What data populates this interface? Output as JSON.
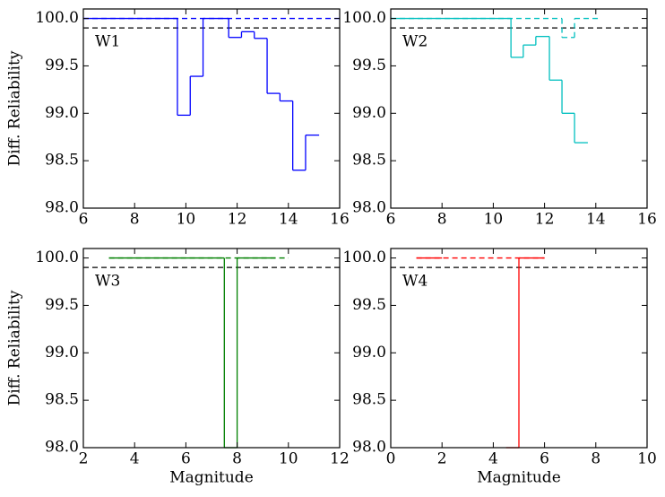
{
  "chart_data": [
    {
      "type": "step",
      "label": "W1",
      "ylabel": "Diff. Reliability",
      "xlim": [
        6,
        16
      ],
      "xticks": [
        6,
        8,
        10,
        12,
        14,
        16
      ],
      "ylim": [
        98,
        100.1
      ],
      "yticks": [
        {
          "value": 98,
          "label": "98.0"
        },
        {
          "value": 98.5,
          "label": "98.5"
        },
        {
          "value": 99,
          "label": "99.0"
        },
        {
          "value": 99.5,
          "label": "99.5"
        },
        {
          "value": 100,
          "label": "100.0"
        }
      ],
      "hline": 99.9,
      "hline_color": "#000000",
      "series": [
        {
          "color": "#0000ff",
          "style": "solid",
          "bins": [
            6,
            9.67,
            10.17,
            10.67,
            11.67,
            12.17,
            12.67,
            13.17,
            13.67,
            14.17,
            14.67,
            15.2
          ],
          "values": [
            100,
            98.98,
            99.39,
            100,
            99.8,
            99.86,
            99.79,
            99.21,
            99.13,
            98.4,
            98.77
          ]
        },
        {
          "color": "#0000ff",
          "style": "dashed",
          "bins": [
            6,
            16
          ],
          "values": [
            100
          ]
        }
      ]
    },
    {
      "type": "step",
      "label": "W2",
      "xlim": [
        6,
        16
      ],
      "xticks": [
        6,
        8,
        10,
        12,
        14,
        16
      ],
      "ylim": [
        98,
        100.1
      ],
      "yticks": [
        {
          "value": 98,
          "label": "98.0"
        },
        {
          "value": 98.5,
          "label": "98.5"
        },
        {
          "value": 99,
          "label": "99.0"
        },
        {
          "value": 99.5,
          "label": "99.5"
        },
        {
          "value": 100,
          "label": "100.0"
        }
      ],
      "hline": 99.9,
      "hline_color": "#000000",
      "series": [
        {
          "color": "#00bfbf",
          "style": "solid",
          "bins": [
            6,
            10.69,
            11.17,
            11.66,
            12.19,
            12.68,
            13.17,
            13.69
          ],
          "values": [
            100,
            99.59,
            99.72,
            99.81,
            99.35,
            99.0,
            98.69
          ]
        },
        {
          "color": "#00bfbf",
          "style": "dashed",
          "bins": [
            6,
            12.68,
            13.17,
            14.2
          ],
          "values": [
            100,
            99.8,
            100
          ]
        }
      ]
    },
    {
      "type": "step",
      "label": "W3",
      "ylabel": "Diff. Reliability",
      "xlabel": "Magnitude",
      "xlim": [
        2,
        12
      ],
      "xticks": [
        2,
        4,
        6,
        8,
        10,
        12
      ],
      "ylim": [
        98,
        100.1
      ],
      "yticks": [
        {
          "value": 98,
          "label": "98.0"
        },
        {
          "value": 98.5,
          "label": "98.5"
        },
        {
          "value": 99,
          "label": "99.0"
        },
        {
          "value": 99.5,
          "label": "99.5"
        },
        {
          "value": 100,
          "label": "100.0"
        }
      ],
      "hline": 99.9,
      "hline_color": "#000000",
      "series": [
        {
          "color": "#008000",
          "style": "solid",
          "bins": [
            3,
            7.5,
            8,
            9.5
          ],
          "values": [
            100,
            98,
            100
          ]
        },
        {
          "color": "#008000",
          "style": "dashed",
          "bins": [
            3,
            10
          ],
          "values": [
            100
          ]
        }
      ]
    },
    {
      "type": "step",
      "label": "W4",
      "xlabel": "Magnitude",
      "xlim": [
        0,
        10
      ],
      "xticks": [
        0,
        2,
        4,
        6,
        8,
        10
      ],
      "ylim": [
        98,
        100.1
      ],
      "yticks": [
        {
          "value": 98,
          "label": "98.0"
        },
        {
          "value": 98.5,
          "label": "98.5"
        },
        {
          "value": 99,
          "label": "99.0"
        },
        {
          "value": 99.5,
          "label": "99.5"
        },
        {
          "value": 100,
          "label": "100.0"
        }
      ],
      "hline": 99.9,
      "hline_color": "#000000",
      "series": [
        {
          "color": "#ff0000",
          "style": "solid",
          "bins": [
            1,
            2,
            4.5,
            5,
            6
          ],
          "values": [
            100,
            null,
            98,
            100
          ]
        },
        {
          "color": "#ff0000",
          "style": "dashed",
          "bins": [
            1,
            6
          ],
          "values": [
            100
          ]
        }
      ]
    }
  ]
}
